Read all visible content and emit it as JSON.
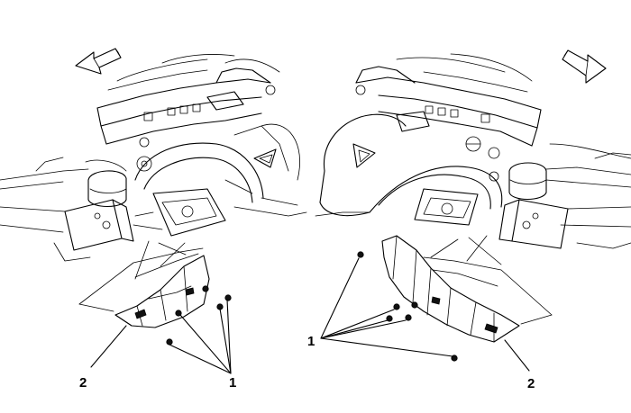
{
  "callouts": {
    "left_item_2": "2",
    "left_item_1": "1",
    "right_item_1": "1",
    "right_item_2": "2"
  },
  "icons": {
    "left_arrow": "forward-arrow-icon",
    "right_arrow": "forward-arrow-icon"
  },
  "colors": {
    "line": "#000000",
    "background": "#ffffff"
  }
}
